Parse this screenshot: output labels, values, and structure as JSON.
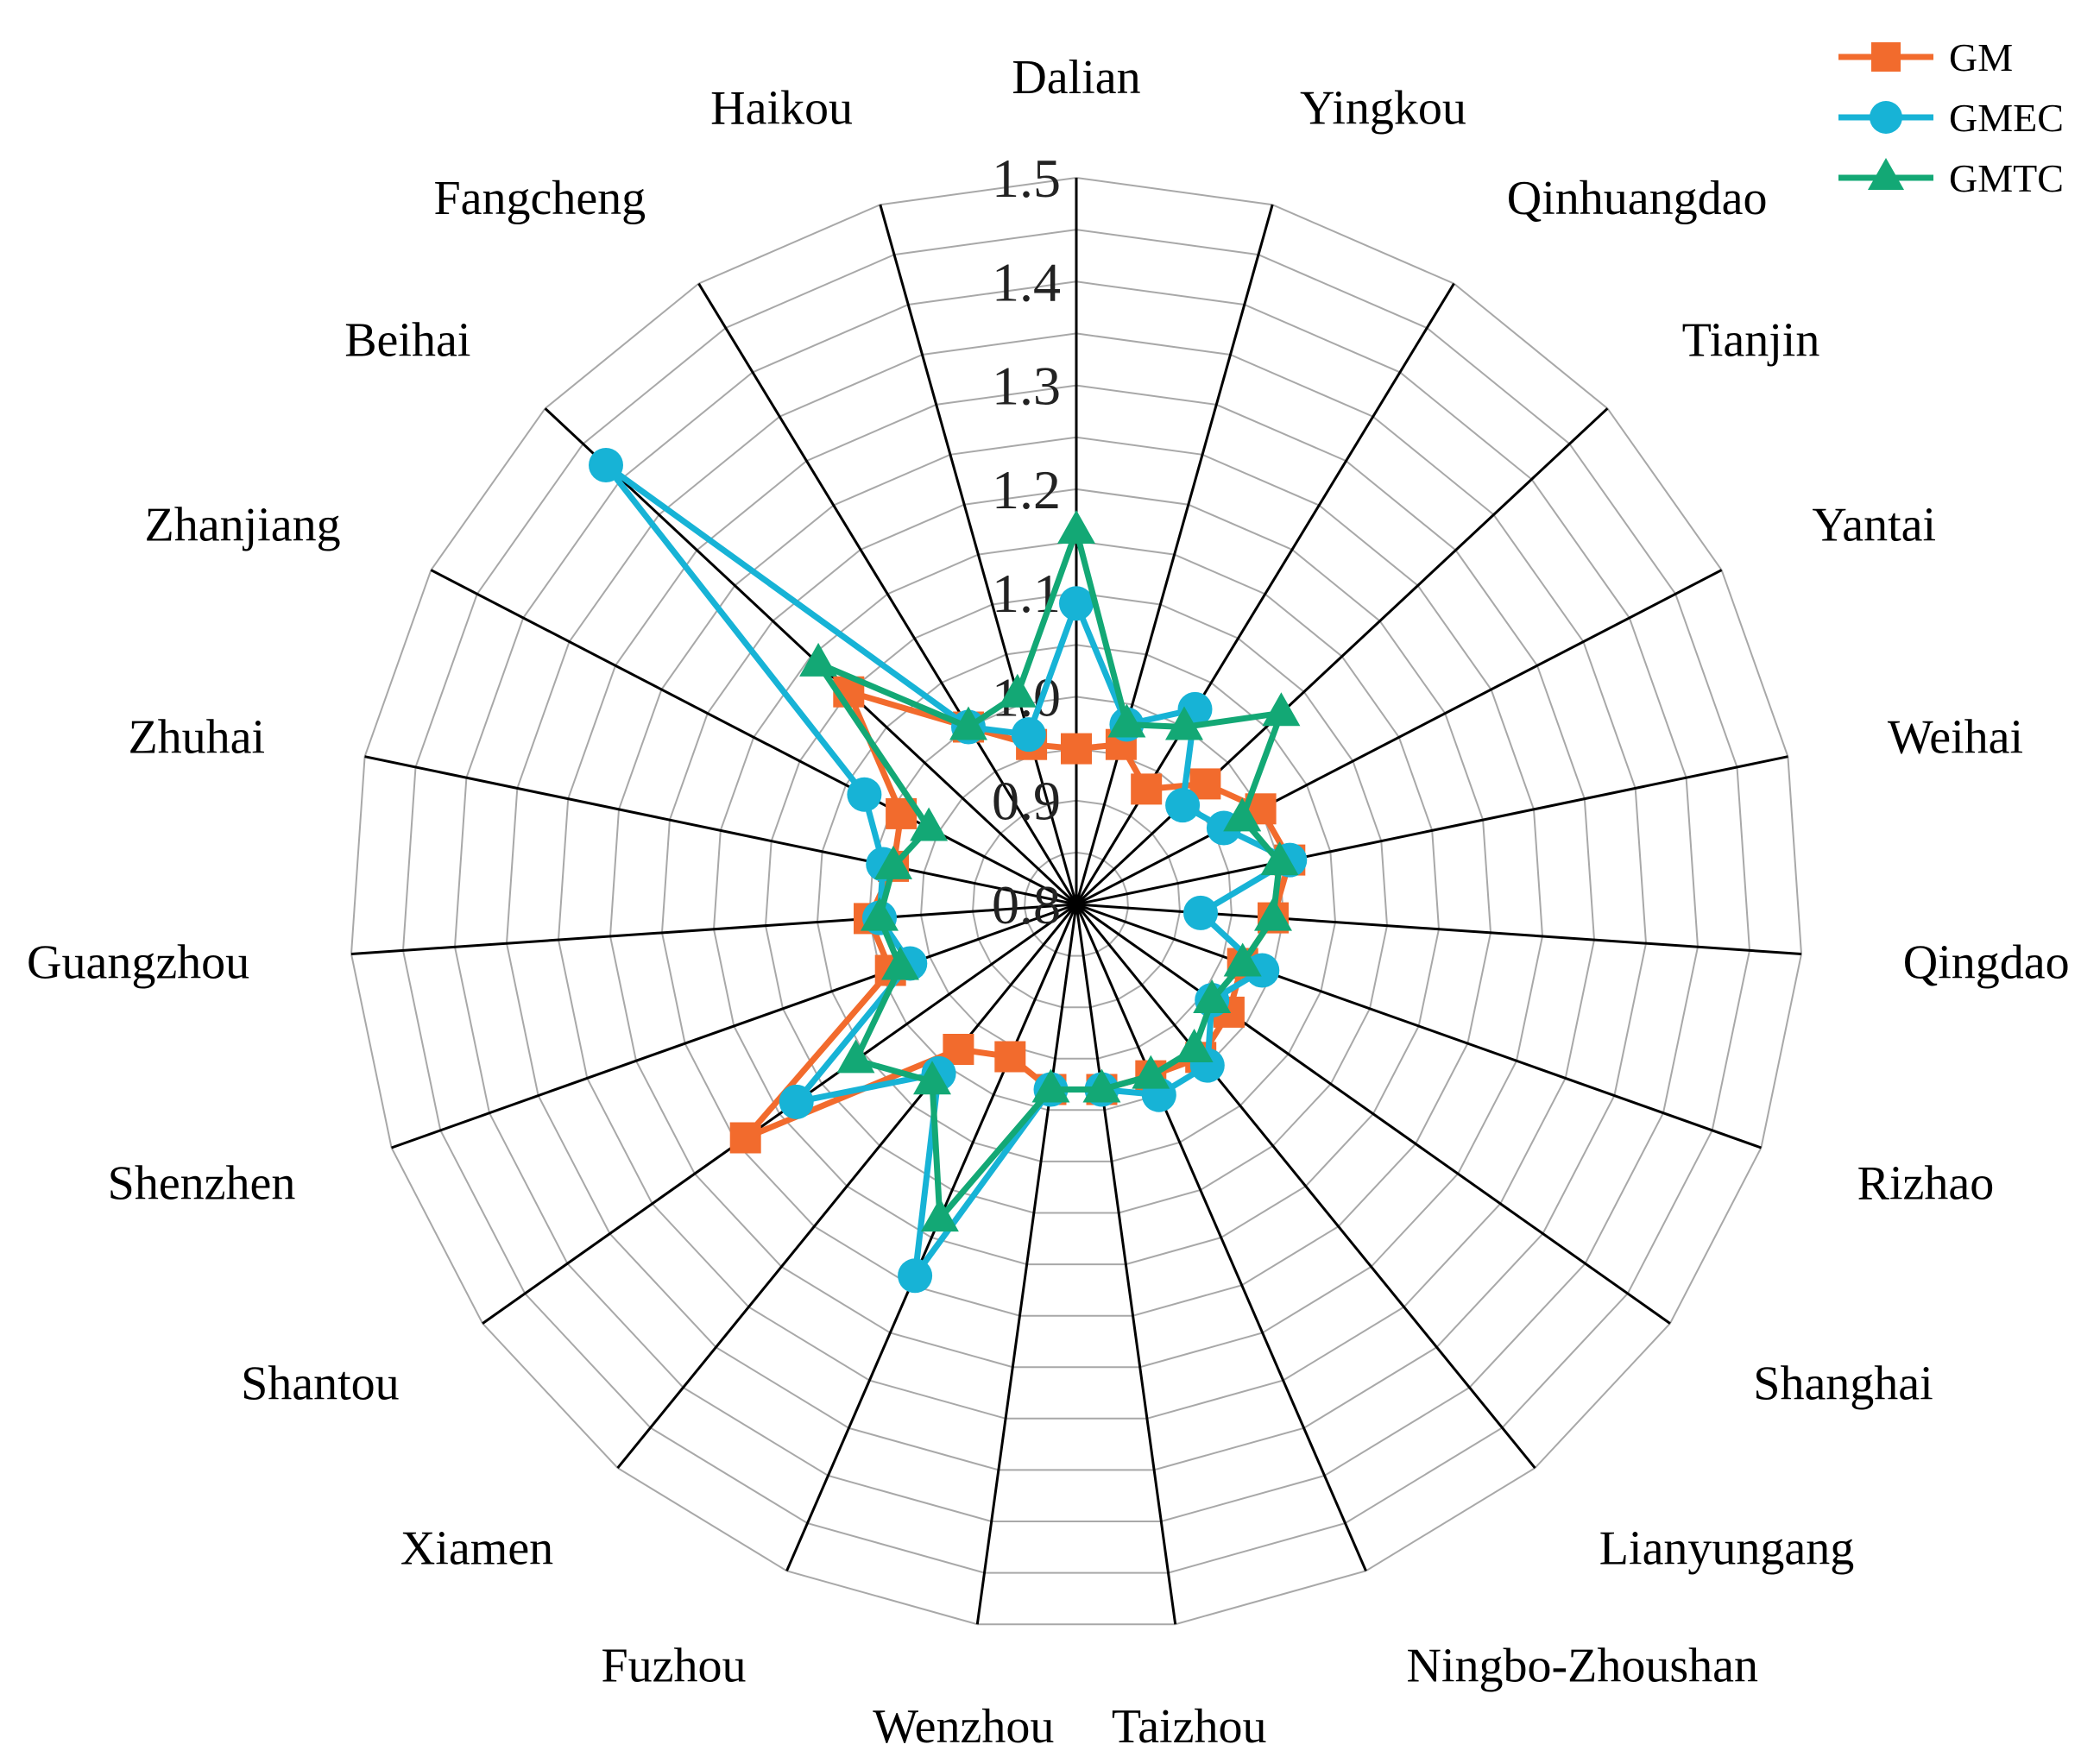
{
  "chart_data": {
    "type": "radar",
    "title": "",
    "categories": [
      "Dalian",
      "Yingkou",
      "Qinhuangdao",
      "Tianjin",
      "Yantai",
      "Weihai",
      "Qingdao",
      "Rizhao",
      "Shanghai",
      "Lianyungang",
      "Ningbo-Zhoushan",
      "Taizhou",
      "Wenzhou",
      "Fuzhou",
      "Xiamen",
      "Shantou",
      "Shenzhen",
      "Guangzhou",
      "Zhuhai",
      "Zhanjiang",
      "Beihai",
      "Fangcheng",
      "Haikou"
    ],
    "radial_ticks": [
      "0.8",
      "0.9",
      "1.0",
      "1.1",
      "1.2",
      "1.3",
      "1.4",
      "1.5"
    ],
    "rlim": [
      0.8,
      1.5
    ],
    "grid": true,
    "legend_position": "top-right",
    "series": [
      {
        "name": "GM",
        "color": "#f26b2d",
        "marker": "square",
        "values": [
          0.95,
          0.96,
          0.93,
          0.97,
          1.0,
          1.01,
          0.99,
          0.97,
          0.98,
          0.99,
          0.98,
          0.98,
          0.98,
          0.96,
          0.98,
          1.19,
          0.99,
          1.0,
          0.98,
          0.99,
          1.1,
          1.0,
          0.96
        ]
      },
      {
        "name": "GMEC",
        "color": "#17b3d6",
        "marker": "circle",
        "values": [
          1.09,
          0.98,
          1.02,
          0.94,
          0.96,
          1.01,
          0.92,
          0.99,
          0.96,
          1.0,
          1.0,
          0.98,
          0.98,
          1.19,
          1.01,
          1.13,
          0.97,
          0.99,
          0.99,
          1.03,
          1.42,
          1.0,
          0.97
        ]
      },
      {
        "name": "GMTC",
        "color": "#13a875",
        "marker": "triangle",
        "values": [
          1.16,
          0.98,
          1.0,
          1.07,
          0.98,
          1.0,
          0.99,
          0.97,
          0.96,
          0.98,
          0.98,
          0.98,
          0.98,
          1.13,
          1.02,
          1.06,
          0.98,
          0.99,
          0.98,
          0.96,
          1.14,
          1.0,
          1.01
        ]
      }
    ]
  }
}
